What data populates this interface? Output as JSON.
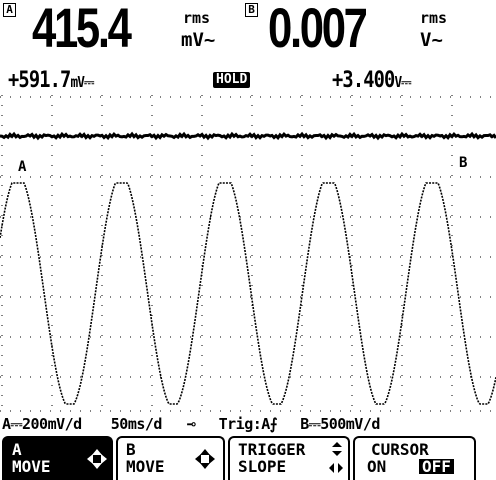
{
  "reading_a": {
    "channel": "A",
    "value": "415.4",
    "unit_top": "rms",
    "unit_bottom": "mV~",
    "sub_value": "+591.7",
    "sub_unit": "mV⎓"
  },
  "reading_b": {
    "channel": "B",
    "value": "0.007",
    "unit_top": "rms",
    "unit_bottom": "V~",
    "sub_value": "+3.400",
    "sub_unit": "V⎓"
  },
  "hold_label": "HOLD",
  "trace_marker_a": "A",
  "trace_marker_b": "B",
  "status": {
    "a_scale": "A⎓200mV/d",
    "timebase": "50ms/d",
    "trigger_icon": "⊸",
    "trigger": "Trig:A⨍",
    "b_scale": "B⎓500mV/d"
  },
  "softkeys": [
    {
      "line1": "A",
      "line2": "MOVE",
      "icon": "four-way-arrow-icon"
    },
    {
      "line1": "B",
      "line2": "MOVE",
      "icon": "four-way-arrow-icon"
    },
    {
      "line1": "TRIGGER",
      "line2": "SLOPE",
      "icon": "updown-leftright-arrow-icon"
    },
    {
      "line1": "CURSOR",
      "line2_on": "ON",
      "line2_off": "OFF"
    }
  ],
  "chart_data": {
    "type": "line",
    "series": [
      {
        "values_description": "channel A sine wave, ~4.3 periods across screen, clipped flat tops"
      },
      {
        "values_description": "channel B near-zero flat noise trace"
      }
    ],
    "grid": true
  },
  "colors": {
    "background": "#ffffff",
    "ink": "#000000"
  }
}
